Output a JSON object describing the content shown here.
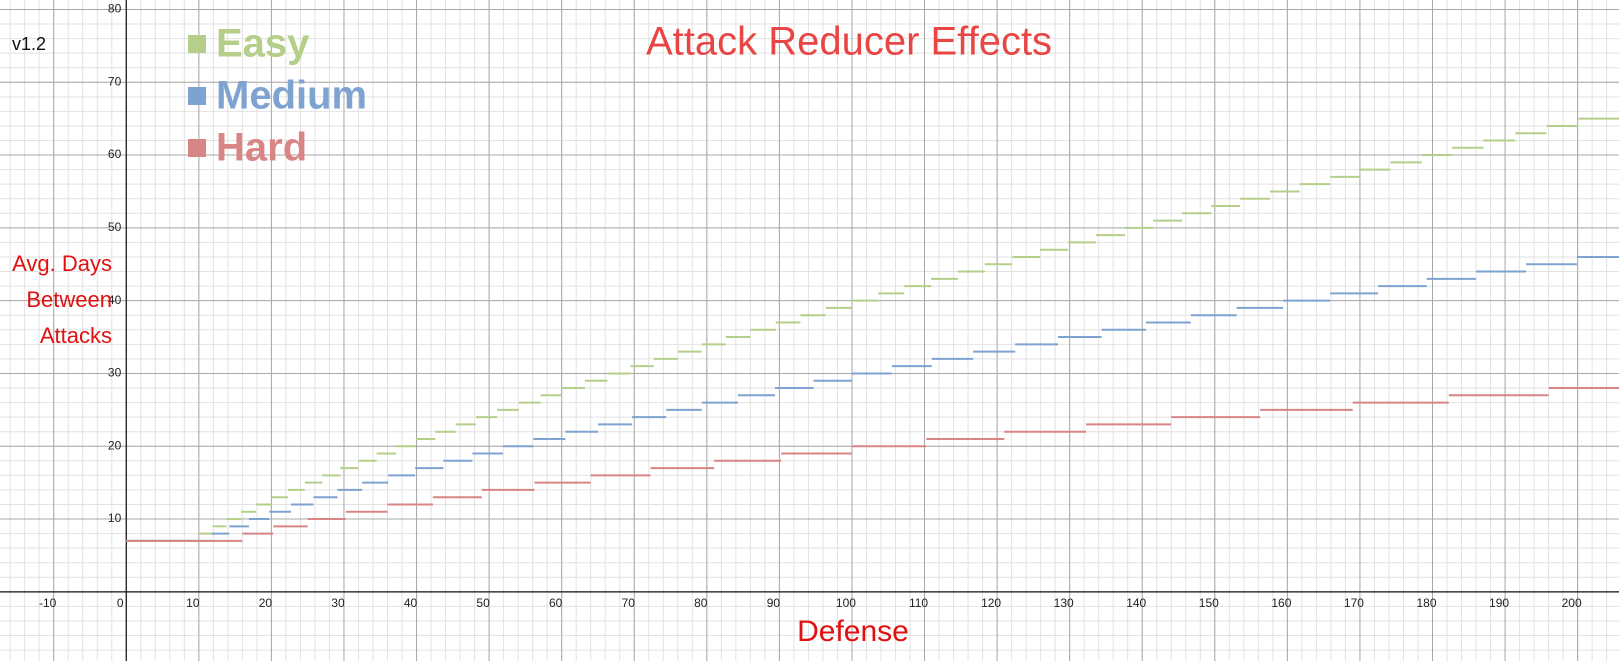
{
  "chart_data": {
    "type": "step",
    "title": "Attack Reducer Effects",
    "annotation": "v1.2",
    "xlabel": "Defense",
    "ylabel": [
      "Avg. Days",
      "Between",
      "Attacks"
    ],
    "xlim": [
      -17.4,
      205.7
    ],
    "ylim": [
      -9.5,
      81.3
    ],
    "xticks": [
      -10,
      0,
      10,
      20,
      30,
      40,
      50,
      60,
      70,
      80,
      90,
      100,
      110,
      120,
      130,
      140,
      150,
      160,
      170,
      180,
      190,
      200
    ],
    "yticks": [
      10,
      20,
      30,
      40,
      50,
      60,
      70,
      80
    ],
    "grid": true,
    "minor_grid": true,
    "legend": "top-left",
    "series": [
      {
        "name": "Easy",
        "color": "#b5cf8a",
        "x": [
          0,
          10.0,
          11.9,
          13.8,
          15.8,
          17.9,
          20.1,
          22.3,
          24.6,
          27.0,
          29.5,
          32.0,
          34.5,
          37.2,
          39.9,
          42.6,
          45.4,
          48.2,
          51.1,
          54.1,
          57.1,
          60.0,
          63.2,
          66.3,
          69.5,
          72.7,
          76.0,
          79.3,
          82.6,
          86.0,
          89.5,
          92.9,
          96.4,
          100,
          103.6,
          107.2,
          110.9,
          114.6,
          118.3,
          122.1,
          125.9,
          129.8,
          133.6,
          137.6,
          141.5,
          145.5,
          149.5,
          153.5,
          157.6,
          161.7,
          165.9,
          170.0,
          174.2,
          178.5,
          182.7,
          187.0,
          191.4,
          195.7,
          200.1
        ],
        "values": [
          7,
          8,
          9,
          10,
          11,
          12,
          13,
          14,
          15,
          16,
          17,
          18,
          19,
          20,
          21,
          22,
          23,
          24,
          25,
          26,
          27,
          28,
          29,
          30,
          31,
          32,
          33,
          34,
          35,
          36,
          37,
          38,
          39,
          40,
          41,
          42,
          43,
          44,
          45,
          46,
          47,
          48,
          49,
          50,
          51,
          52,
          53,
          54,
          55,
          56,
          57,
          58,
          59,
          60,
          61,
          62,
          63,
          64,
          65
        ]
      },
      {
        "name": "Medium",
        "color": "#7ea3d0",
        "x": [
          0,
          11.8,
          14.2,
          16.9,
          19.7,
          22.7,
          25.8,
          29.1,
          32.5,
          36.1,
          39.8,
          43.7,
          47.7,
          51.9,
          56.1,
          60.5,
          65.0,
          69.7,
          74.4,
          79.3,
          84.3,
          89.4,
          94.7,
          100,
          105.5,
          111.0,
          116.7,
          122.5,
          128.4,
          134.4,
          140.5,
          146.7,
          153.0,
          159.4,
          165.9,
          172.5,
          179.2,
          186.0,
          192.9,
          199.9
        ],
        "values": [
          7,
          8,
          9,
          10,
          11,
          12,
          13,
          14,
          15,
          16,
          17,
          18,
          19,
          20,
          21,
          22,
          23,
          24,
          25,
          26,
          27,
          28,
          29,
          30,
          31,
          32,
          33,
          34,
          35,
          36,
          37,
          38,
          39,
          40,
          41,
          42,
          43,
          44,
          45,
          46
        ]
      },
      {
        "name": "Hard",
        "color": "#d98585",
        "x": [
          0,
          16,
          20.25,
          25,
          30.25,
          36,
          42.25,
          49,
          56.25,
          64,
          72.25,
          81,
          90.25,
          100,
          110.25,
          121,
          132.25,
          144,
          156.25,
          169,
          182.25,
          196
        ],
        "values": [
          7,
          8,
          9,
          10,
          11,
          12,
          13,
          14,
          15,
          16,
          17,
          18,
          19,
          20,
          21,
          22,
          23,
          24,
          25,
          26,
          27,
          28
        ]
      }
    ]
  }
}
